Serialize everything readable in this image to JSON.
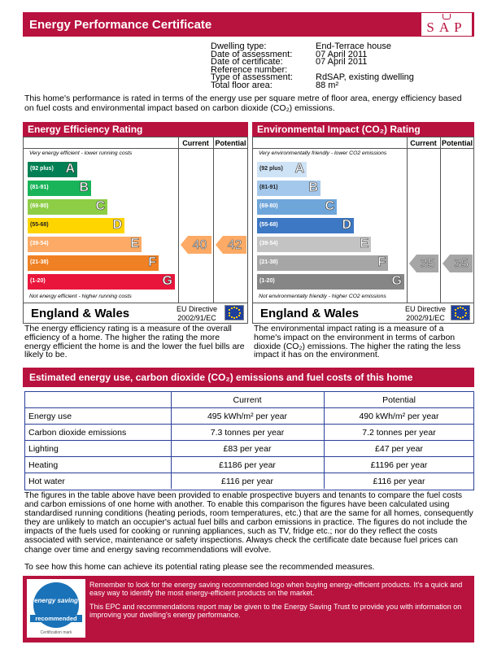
{
  "header": {
    "title": "Energy Performance Certificate",
    "logo": "SAP"
  },
  "details": [
    {
      "label": "Dwelling type:",
      "value": "End-Terrace house"
    },
    {
      "label": "Date of assessment:",
      "value": "07 April 2011"
    },
    {
      "label": "Date of certificate:",
      "value": "07 April 2011"
    },
    {
      "label": "Reference number:"
    },
    {
      "label": "Type of assessment:",
      "value": "RdSAP, existing dwelling"
    },
    {
      "label": "Total floor area:",
      "value": "88 m²"
    }
  ],
  "intro": "This home's performance is rated in terms of the energy use per square metre of floor area, energy efficiency based on fuel costs and environmental impact based on carbon dioxide (CO₂) emissions.",
  "ratings": [
    {
      "title": "Energy Efficiency Rating",
      "columns": [
        "Current",
        "Potential"
      ],
      "top_note": "Very energy efficient - lower running costs",
      "bottom_note": "Not energy efficient - higher running costs",
      "bands": [
        {
          "range": "(92 plus)",
          "letter": "A",
          "color": "#008054"
        },
        {
          "range": "(81-91)",
          "letter": "B",
          "color": "#19b459"
        },
        {
          "range": "(69-80)",
          "letter": "C",
          "color": "#8dce46"
        },
        {
          "range": "(55-68)",
          "letter": "D",
          "color": "#ffd500"
        },
        {
          "range": "(39-54)",
          "letter": "E",
          "color": "#fcaa65"
        },
        {
          "range": "(21-38)",
          "letter": "F",
          "color": "#ef8023"
        },
        {
          "range": "(1-20)",
          "letter": "G",
          "color": "#e9153b"
        }
      ],
      "current": 40,
      "potential": 42,
      "region": "England & Wales",
      "directive": [
        "EU Directive",
        "2002/91/EC"
      ],
      "description": "The energy efficiency rating is a measure of the overall efficiency of a home. The higher the rating the more energy efficient the home is and the lower the fuel bills are likely to be."
    },
    {
      "title": "Environmental Impact (CO₂) Rating",
      "columns": [
        "Current",
        "Potential"
      ],
      "top_note": "Very environmentally friendly - lower CO2 emissions",
      "bottom_note": "Not environmentally friendly - higher CO2 emissions",
      "bands": [
        {
          "range": "(92 plus)",
          "letter": "A",
          "color": "#cfe3f6"
        },
        {
          "range": "(81-91)",
          "letter": "B",
          "color": "#a4c8ec"
        },
        {
          "range": "(69-80)",
          "letter": "C",
          "color": "#6fa6da"
        },
        {
          "range": "(55-68)",
          "letter": "D",
          "color": "#3d78c4"
        },
        {
          "range": "(39-54)",
          "letter": "E",
          "color": "#c3c3c3"
        },
        {
          "range": "(21-38)",
          "letter": "F",
          "color": "#a6a6a6"
        },
        {
          "range": "(1-20)",
          "letter": "G",
          "color": "#868686"
        }
      ],
      "current": 35,
      "potential": 35,
      "region": "England & Wales",
      "directive": [
        "EU Directive",
        "2002/91/EC"
      ],
      "description": "The environmental impact rating is a measure of a home's impact on the environment in terms of carbon dioxide (CO₂) emissions. The higher the rating the less impact it has on the environment."
    }
  ],
  "estimates": {
    "title": "Estimated energy use, carbon dioxide (CO₂) emissions and fuel costs of this home",
    "columns": [
      "Current",
      "Potential"
    ],
    "rows": [
      {
        "label": "Energy use",
        "current": "495 kWh/m² per year",
        "potential": "490 kWh/m² per year"
      },
      {
        "label": "Carbon dioxide emissions",
        "current": "7.3 tonnes per year",
        "potential": "7.2 tonnes per year"
      },
      {
        "label": "Lighting",
        "current": "£83 per year",
        "potential": "£47 per year"
      },
      {
        "label": "Heating",
        "current": "£1186 per year",
        "potential": "£1196 per year"
      },
      {
        "label": "Hot water",
        "current": "£116 per year",
        "potential": "£116 per year"
      }
    ]
  },
  "notes": [
    "The figures in the table above have been provided to enable prospective buyers and tenants to compare the fuel costs and carbon emissions of one home with another. To enable this comparison the figures have been calculated using standardised running conditions (heating periods, room temperatures, etc.) that are the same for all homes, consequently they are unlikely to match an occupier's actual fuel bills and carbon emissions in practice. The figures do not include the impacts of the fuels used for cooking or running appliances, such as TV, fridge etc.; nor do they reflect the costs associated with service, maintenance or safety inspections. Always check the certificate date because fuel prices can change over time and energy saving recommendations will evolve.",
    "To see how this home can achieve its potential rating please see the recommended measures."
  ],
  "footer": {
    "logo": [
      "energy saving",
      "recommended",
      "Certification mark"
    ],
    "texts": [
      "Remember to look for the energy saving recommended logo when buying energy-efficient products. It's a quick and easy way to identify the most energy-efficient products on the market.",
      "This EPC and recommendations report may be given to the Energy Saving Trust to provide you with information on improving your dwelling's energy performance."
    ]
  }
}
